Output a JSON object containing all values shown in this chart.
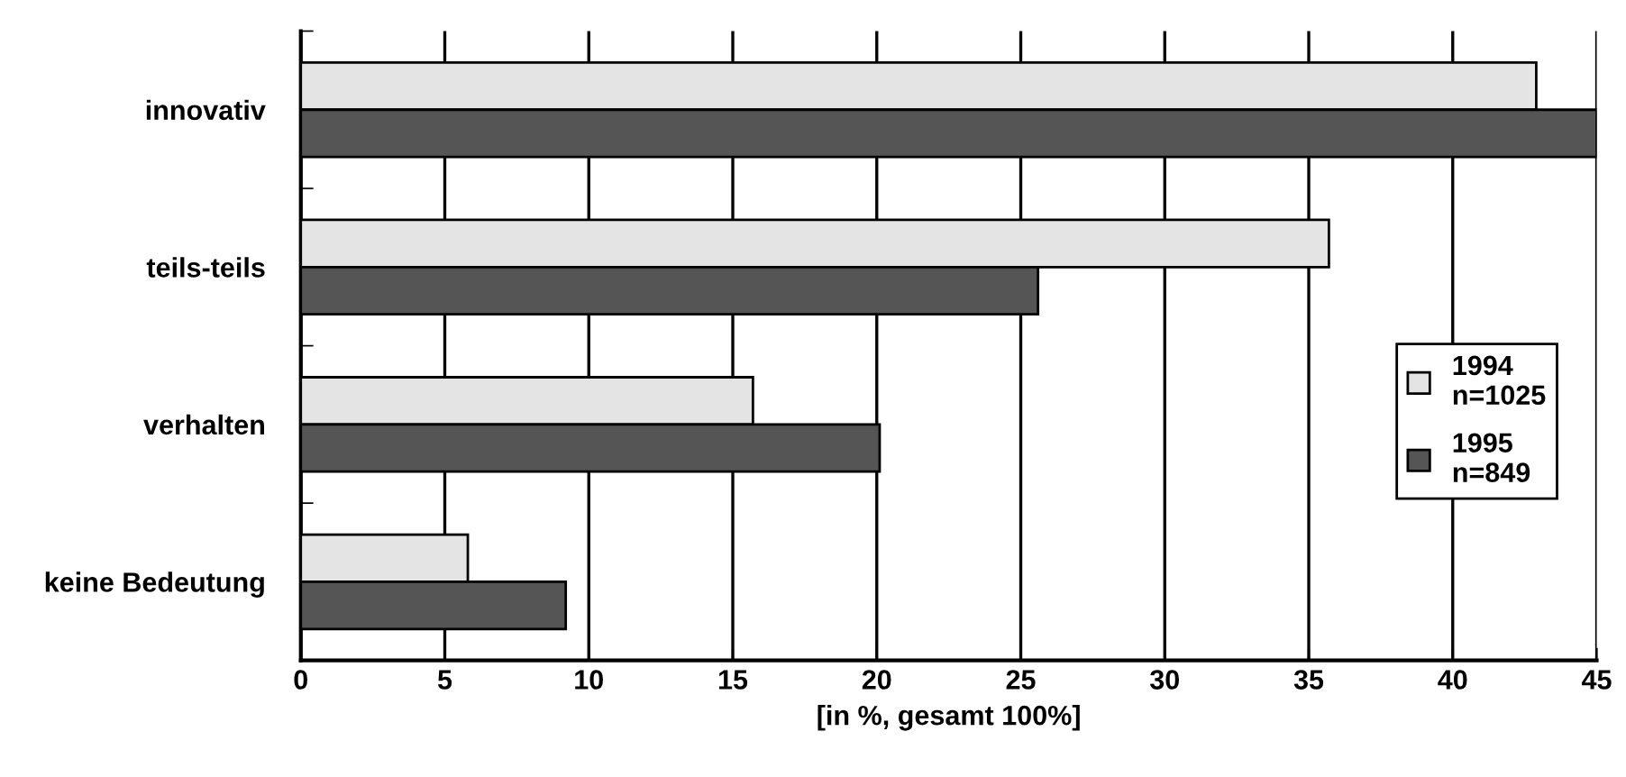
{
  "chart_data": {
    "type": "bar",
    "orientation": "horizontal",
    "xlabel": "[in %, gesamt 100%]",
    "categories": [
      "innovativ",
      "teils-teils",
      "verhalten",
      "keine Bedeutung"
    ],
    "series": [
      {
        "name": "1994\nn=1025",
        "color": "#e4e4e4",
        "values": [
          42.9,
          35.7,
          15.7,
          5.8
        ]
      },
      {
        "name": "1995\nn=849",
        "color": "#555555",
        "values": [
          45,
          25.6,
          20.1,
          9.2
        ]
      }
    ],
    "xlim": [
      0,
      45
    ],
    "xticks": [
      0,
      5,
      10,
      15,
      20,
      25,
      30,
      35,
      40,
      45
    ],
    "grid": "x",
    "legend": "right"
  }
}
